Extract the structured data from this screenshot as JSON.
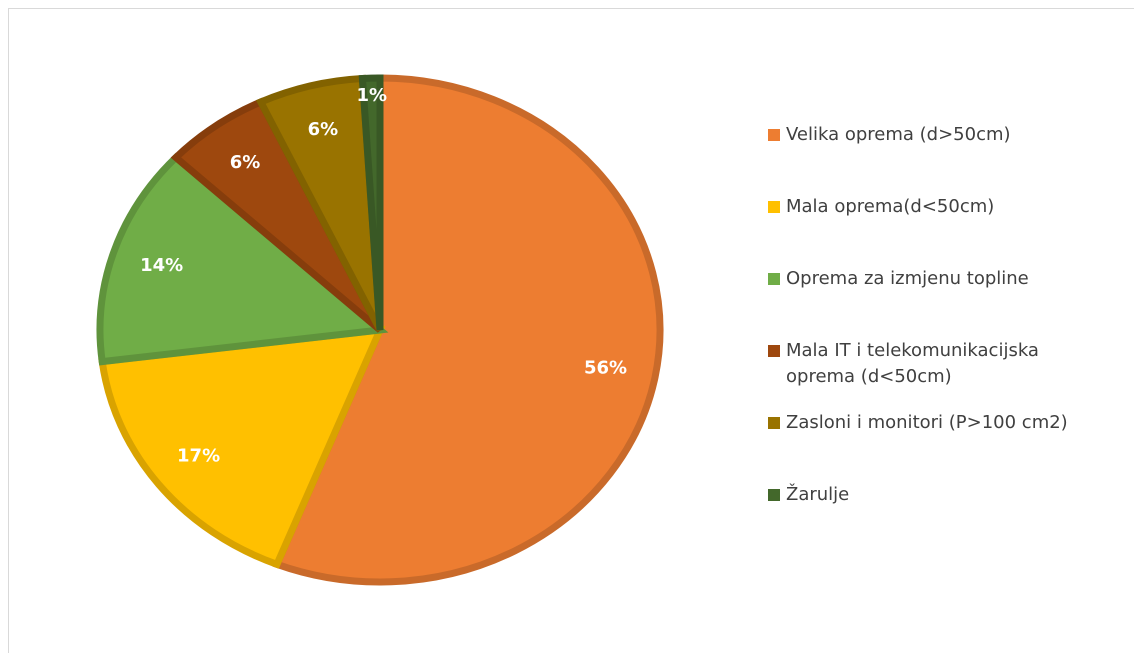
{
  "chart_data": {
    "type": "pie",
    "categories": [
      "Velika oprema (d>50cm)",
      "Mala oprema(d<50cm)",
      "Oprema za izmjenu topline",
      "Mala IT i telekomunikacijska oprema (d<50cm)",
      "Zasloni i monitori (P>100 cm2)",
      "Žarulje"
    ],
    "values": [
      56,
      17,
      14,
      6,
      6,
      1
    ],
    "value_labels": [
      "56%",
      "17%",
      "14%",
      "6%",
      "6%",
      "1%"
    ],
    "colors": [
      "#ed7d31",
      "#ffc000",
      "#70ad47",
      "#9e480e",
      "#997300",
      "#43682b"
    ],
    "legend": "right"
  }
}
